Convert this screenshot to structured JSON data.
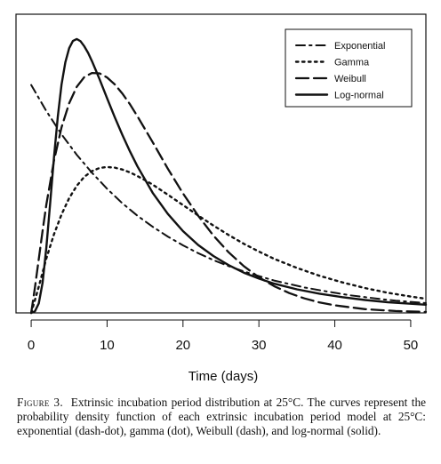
{
  "chart_data": {
    "type": "line",
    "xlabel": "Time (days)",
    "ylabel": "",
    "xlim": [
      -2,
      52
    ],
    "ylim": [
      0,
      0.095
    ],
    "x_ticks": [
      0,
      10,
      20,
      30,
      40,
      50
    ],
    "grid": false,
    "legend_position": "top-right",
    "series": [
      {
        "name": "Exponential",
        "dash": "dash-dot",
        "x": [
          0,
          2,
          4,
          6,
          8,
          10,
          12,
          14,
          16,
          18,
          20,
          22,
          24,
          26,
          28,
          30,
          32,
          34,
          36,
          38,
          40,
          42,
          44,
          46,
          48,
          50,
          52
        ],
        "y": [
          0.0725,
          0.0642,
          0.0568,
          0.0503,
          0.0446,
          0.0395,
          0.0349,
          0.0309,
          0.0274,
          0.0243,
          0.0215,
          0.019,
          0.0168,
          0.0149,
          0.0132,
          0.0117,
          0.0103,
          0.0092,
          0.0081,
          0.0072,
          0.0064,
          0.0056,
          0.005,
          0.0044,
          0.0039,
          0.0035,
          0.0031
        ]
      },
      {
        "name": "Gamma",
        "dash": "dot",
        "x": [
          0,
          1,
          2,
          3,
          4,
          5,
          6,
          7,
          8,
          9,
          10,
          11,
          12,
          13,
          14,
          15,
          16,
          18,
          20,
          22,
          24,
          26,
          28,
          30,
          32,
          35,
          38,
          41,
          44,
          47,
          50,
          52
        ],
        "y": [
          0,
          0.0083,
          0.0173,
          0.025,
          0.0313,
          0.0365,
          0.0404,
          0.0433,
          0.0451,
          0.0461,
          0.0464,
          0.0462,
          0.0456,
          0.0447,
          0.0435,
          0.0422,
          0.0408,
          0.0376,
          0.0343,
          0.031,
          0.0278,
          0.0248,
          0.022,
          0.0195,
          0.0172,
          0.0143,
          0.0118,
          0.0097,
          0.0079,
          0.0064,
          0.0052,
          0.0045
        ]
      },
      {
        "name": "Weibull",
        "dash": "dash",
        "x": [
          0,
          0.5,
          1,
          1.5,
          2,
          3,
          4,
          5,
          6,
          7,
          8,
          9,
          10,
          11,
          12,
          13,
          14,
          16,
          18,
          20,
          22,
          24,
          26,
          28,
          30,
          32,
          34,
          36,
          38,
          40,
          44,
          48,
          52
        ],
        "y": [
          0,
          0.0081,
          0.0171,
          0.0261,
          0.0344,
          0.0484,
          0.059,
          0.0667,
          0.0719,
          0.075,
          0.0763,
          0.0762,
          0.0749,
          0.0727,
          0.0698,
          0.0664,
          0.0625,
          0.0543,
          0.0459,
          0.038,
          0.0309,
          0.0246,
          0.0193,
          0.0149,
          0.0113,
          0.0085,
          0.0063,
          0.0046,
          0.0033,
          0.0024,
          0.0012,
          0.0006,
          0.0003
        ]
      },
      {
        "name": "Log-normal",
        "dash": "solid",
        "x": [
          0,
          0.5,
          1,
          1.5,
          2,
          2.5,
          3,
          3.5,
          4,
          4.5,
          5,
          5.5,
          6,
          6.5,
          7,
          7.5,
          8,
          8.5,
          9,
          10,
          11,
          12,
          13,
          14,
          16,
          18,
          20,
          22,
          24,
          26,
          28,
          30,
          32,
          35,
          38,
          41,
          44,
          47,
          50,
          52
        ],
        "y": [
          0,
          0.0005,
          0.003,
          0.0096,
          0.0207,
          0.0348,
          0.0494,
          0.0624,
          0.0726,
          0.0797,
          0.0842,
          0.0865,
          0.0871,
          0.0864,
          0.0848,
          0.0827,
          0.0801,
          0.0773,
          0.0744,
          0.0683,
          0.0623,
          0.0567,
          0.0514,
          0.0466,
          0.0382,
          0.0315,
          0.026,
          0.0216,
          0.0181,
          0.0152,
          0.0128,
          0.0109,
          0.0093,
          0.0075,
          0.0061,
          0.005,
          0.0041,
          0.0034,
          0.0029,
          0.0026
        ]
      }
    ]
  },
  "caption": {
    "label": "Figure 3.",
    "text": "Extrinsic incubation period distribution at 25°C. The curves represent the probability density function of each extrinsic incubation period model at 25°C: exponential (dash-dot), gamma (dot), Weibull (dash), and log-normal (solid)."
  }
}
